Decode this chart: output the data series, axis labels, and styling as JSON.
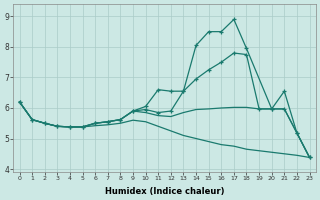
{
  "xlabel": "Humidex (Indice chaleur)",
  "bg_color": "#cce8e4",
  "grid_color": "#aaccc8",
  "line_color": "#1a7a6e",
  "xlim": [
    -0.5,
    23.5
  ],
  "ylim": [
    3.9,
    9.4
  ],
  "yticks": [
    4,
    5,
    6,
    7,
    8,
    9
  ],
  "xticks": [
    0,
    1,
    2,
    3,
    4,
    5,
    6,
    7,
    8,
    9,
    10,
    11,
    12,
    13,
    14,
    15,
    16,
    17,
    18,
    19,
    20,
    21,
    22,
    23
  ],
  "line1_x": [
    0,
    1,
    2,
    3,
    4,
    5,
    6,
    7,
    8,
    9,
    10,
    11,
    12,
    13,
    14,
    15,
    16,
    17,
    18,
    20,
    21,
    22,
    23
  ],
  "line1_y": [
    6.2,
    5.62,
    5.5,
    5.4,
    5.38,
    5.38,
    5.5,
    5.55,
    5.62,
    5.9,
    6.05,
    6.6,
    6.55,
    6.55,
    8.05,
    8.5,
    8.5,
    8.9,
    7.95,
    5.97,
    6.55,
    5.18,
    4.38
  ],
  "line2_x": [
    0,
    1,
    2,
    3,
    4,
    5,
    6,
    7,
    8,
    9,
    10,
    11,
    12,
    13,
    14,
    15,
    16,
    17,
    18,
    19,
    20,
    21,
    22,
    23
  ],
  "line2_y": [
    6.2,
    5.62,
    5.5,
    5.4,
    5.38,
    5.38,
    5.5,
    5.55,
    5.62,
    5.9,
    5.95,
    5.85,
    5.9,
    6.55,
    6.95,
    7.25,
    7.5,
    7.8,
    7.75,
    5.97,
    5.97,
    5.97,
    5.18,
    4.38
  ],
  "line3_x": [
    0,
    1,
    2,
    3,
    4,
    5,
    6,
    7,
    8,
    9,
    10,
    11,
    12,
    13,
    14,
    15,
    16,
    17,
    18,
    19,
    20,
    21,
    22,
    23
  ],
  "line3_y": [
    6.2,
    5.62,
    5.5,
    5.4,
    5.38,
    5.38,
    5.42,
    5.45,
    5.5,
    5.6,
    5.55,
    5.4,
    5.25,
    5.1,
    5.0,
    4.9,
    4.8,
    4.75,
    4.65,
    4.6,
    4.55,
    4.5,
    4.45,
    4.38
  ],
  "line4_x": [
    0,
    1,
    2,
    3,
    4,
    5,
    6,
    7,
    8,
    9,
    10,
    11,
    12,
    13,
    14,
    15,
    16,
    17,
    18,
    19,
    20,
    21,
    22,
    23
  ],
  "line4_y": [
    6.2,
    5.62,
    5.5,
    5.4,
    5.38,
    5.38,
    5.5,
    5.55,
    5.62,
    5.9,
    5.85,
    5.75,
    5.72,
    5.85,
    5.95,
    5.97,
    6.0,
    6.02,
    6.02,
    5.97,
    5.97,
    5.97,
    5.18,
    4.38
  ]
}
